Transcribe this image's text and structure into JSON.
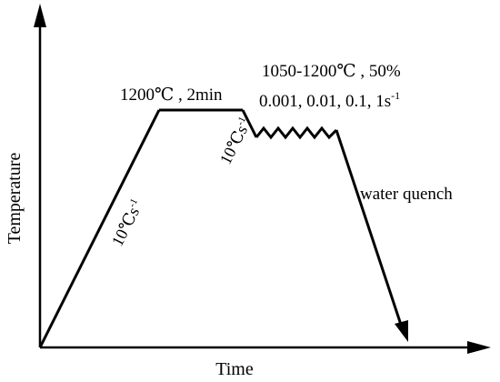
{
  "diagram": {
    "axes": {
      "x_label": "Time",
      "y_label": "Temperature"
    },
    "annotations": {
      "soak": "1200℃ , 2min",
      "deform_temp": "1050-1200℃ , 50%",
      "strain_rates": "0.001, 0.01, 0.1, 1s",
      "strain_rates_sup": "-1",
      "heating_rate": "10℃s",
      "heating_rate_sup": "-1",
      "cooling_rate": "10℃s",
      "cooling_rate_sup": "-1",
      "quench": "water quench"
    }
  }
}
